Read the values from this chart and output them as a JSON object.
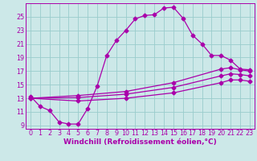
{
  "background_color": "#cce8e8",
  "grid_color": "#99cccc",
  "line_color": "#aa00aa",
  "marker_size": 2.5,
  "xlabel": "Windchill (Refroidissement éolien,°C)",
  "xlabel_fontsize": 6.5,
  "tick_fontsize": 5.8,
  "xlim": [
    -0.5,
    23.5
  ],
  "ylim": [
    8.5,
    27.0
  ],
  "xticks": [
    0,
    1,
    2,
    3,
    4,
    5,
    6,
    7,
    8,
    9,
    10,
    11,
    12,
    13,
    14,
    15,
    16,
    17,
    18,
    19,
    20,
    21,
    22,
    23
  ],
  "yticks": [
    9,
    11,
    13,
    15,
    17,
    19,
    21,
    23,
    25
  ],
  "line1_x": [
    0,
    1,
    2,
    3,
    4,
    5,
    6,
    7,
    8,
    9,
    10,
    11,
    12,
    13,
    14,
    15,
    16,
    17,
    18,
    19,
    20,
    21,
    22,
    23
  ],
  "line1_y": [
    13.3,
    11.8,
    11.2,
    9.5,
    9.2,
    9.2,
    11.5,
    14.8,
    19.3,
    21.5,
    23.0,
    24.7,
    25.2,
    25.3,
    26.3,
    26.4,
    24.8,
    22.3,
    21.0,
    19.3,
    19.3,
    18.6,
    17.3,
    17.2
  ],
  "line2_x": [
    0,
    23
  ],
  "line2_y": [
    13.0,
    17.0
  ],
  "line3_x": [
    0,
    23
  ],
  "line3_y": [
    13.0,
    16.3
  ],
  "line4_x": [
    0,
    23
  ],
  "line4_y": [
    13.0,
    15.5
  ],
  "line2_markers_x": [
    0,
    5,
    10,
    15,
    20,
    21,
    22,
    23
  ],
  "line2_markers_y": [
    13.0,
    13.4,
    14.0,
    15.3,
    17.3,
    17.5,
    17.2,
    17.0
  ],
  "line3_markers_x": [
    0,
    5,
    10,
    15,
    20,
    21,
    22,
    23
  ],
  "line3_markers_y": [
    13.0,
    13.1,
    13.6,
    14.6,
    16.3,
    16.6,
    16.5,
    16.3
  ],
  "line4_markers_x": [
    0,
    5,
    10,
    15,
    20,
    21,
    22,
    23
  ],
  "line4_markers_y": [
    13.0,
    12.6,
    13.0,
    13.8,
    15.3,
    15.7,
    15.7,
    15.5
  ]
}
